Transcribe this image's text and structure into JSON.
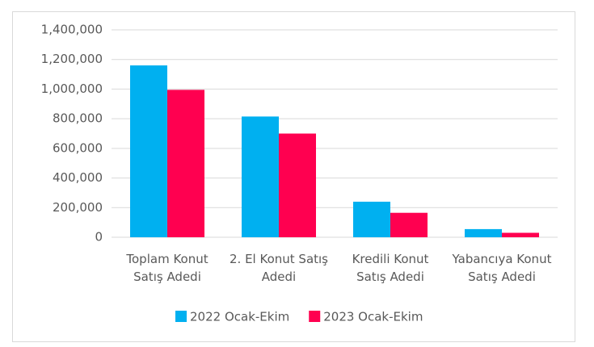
{
  "chart_data": {
    "type": "bar",
    "categories": [
      "Toplam Konut Satış Adedi",
      "2. El Konut Satış Adedi",
      "Kredili Konut Satış Adedi",
      "Yabancıya Konut Satış Adedi"
    ],
    "series": [
      {
        "name": "2022 Ocak-Ekim",
        "color": "#00b0f0",
        "values": [
          1160000,
          815000,
          240000,
          55000
        ]
      },
      {
        "name": "2023 Ocak-Ekim",
        "color": "#ff0050",
        "values": [
          995000,
          700000,
          165000,
          30000
        ]
      }
    ],
    "ylim": [
      0,
      1400000
    ],
    "yticks": [
      0,
      {
        "value": 200000,
        "label": "200,000"
      },
      {
        "value": 400000,
        "label": "400,000"
      },
      {
        "value": 600000,
        "label": "600,000"
      },
      {
        "value": 800000,
        "label": "800,000"
      },
      {
        "value": 1000000,
        "label": "1,000,000"
      },
      {
        "value": 1200000,
        "label": "1,200,000"
      },
      {
        "value": 1400000,
        "label": "1,400,000"
      }
    ],
    "grid": true,
    "legend": "bottom"
  }
}
